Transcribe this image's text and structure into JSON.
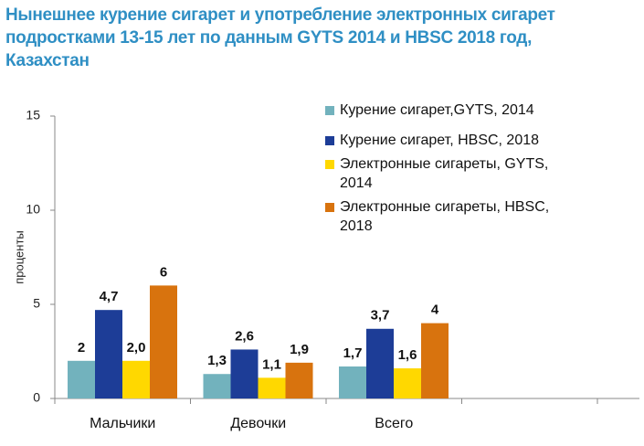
{
  "chart_data": {
    "type": "bar",
    "title": "Нынешнее курение сигарет и употребление электронных сигарет подростками 13-15 лет по данным GYTS 2014 и HBSC 2018 год, Казахстан",
    "y_label": "проценты",
    "categories": [
      "Мальчики",
      "Девочки",
      "Всего",
      null
    ],
    "series": [
      {
        "name": "Курение сигарет,GYTS, 2014",
        "color": "#72b2bd",
        "values": [
          2,
          1.3,
          1.7,
          null
        ],
        "value_labels": [
          "2",
          "1,3",
          "1,7",
          null
        ]
      },
      {
        "name": "Курение сигарет, HBSC, 2018",
        "color": "#1d3d97",
        "values": [
          4.7,
          2.6,
          3.7,
          null
        ],
        "value_labels": [
          "4,7",
          "2,6",
          "3,7",
          null
        ]
      },
      {
        "name": "Электронные сигареты, GYTS, 2014",
        "color": "#ffd800",
        "values": [
          2.0,
          1.1,
          1.6,
          null
        ],
        "value_labels": [
          "2,0",
          "1,1",
          "1,6",
          null
        ]
      },
      {
        "name": "Электронные сигареты, HBSC, 2018",
        "color": "#d8730e",
        "values": [
          6,
          1.9,
          4,
          null
        ],
        "value_labels": [
          "6",
          "1,9",
          "4",
          null
        ]
      }
    ],
    "ylim": [
      0,
      15
    ],
    "yticks": [
      0,
      5,
      10,
      15
    ],
    "grid": false
  }
}
